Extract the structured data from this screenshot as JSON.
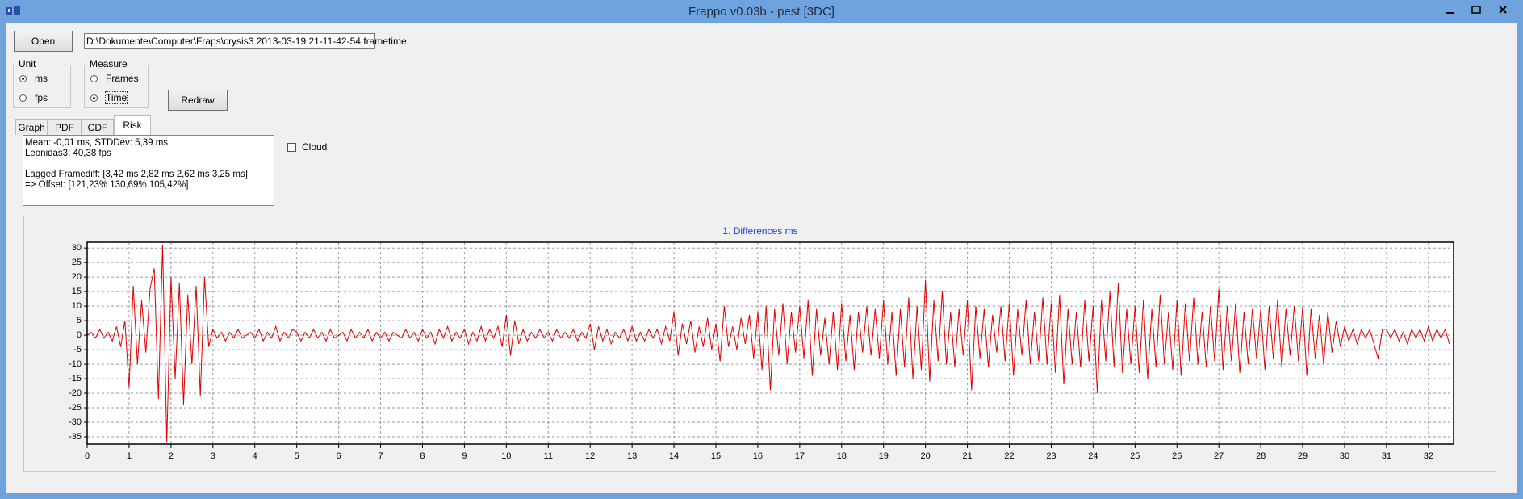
{
  "window": {
    "title": "Frappo v0.03b - pest [3DC]"
  },
  "toolbar": {
    "open_button": "Open",
    "file_path": "D:\\Dokumente\\Computer\\Fraps\\crysis3 2013-03-19 21-11-42-54 frametime",
    "redraw_button": "Redraw"
  },
  "unit": {
    "label": "Unit",
    "options": [
      "ms",
      "fps"
    ],
    "selected": "ms"
  },
  "measure": {
    "label": "Measure",
    "options": [
      "Frames",
      "Time"
    ],
    "selected": "Time"
  },
  "tabs": {
    "items": [
      "Graph",
      "PDF",
      "CDF",
      "Risk"
    ],
    "active": "Risk"
  },
  "stats": [
    [
      "Mean: -0,01 ms, STDDev: 5,39 ms",
      "Leonidas3: 40,38 fps"
    ],
    [
      "Lagged Framediff: [3,42 ms 2,82 ms 2,62 ms 3,25 ms]",
      "=> Offset: [121,23% 130,69% 105,42%]"
    ]
  ],
  "cloud": {
    "label": "Cloud",
    "checked": false
  },
  "chart_data": {
    "type": "line",
    "title": "1. Differences ms",
    "color": "#e00000",
    "grid": true,
    "xlim": [
      0,
      32.6
    ],
    "ylim": [
      -37.5,
      32
    ],
    "xticks": [
      0,
      1,
      2,
      3,
      4,
      5,
      6,
      7,
      8,
      9,
      10,
      11,
      12,
      13,
      14,
      15,
      16,
      17,
      18,
      19,
      20,
      21,
      22,
      23,
      24,
      25,
      26,
      27,
      28,
      29,
      30,
      31,
      32
    ],
    "yticks": [
      30,
      25,
      20,
      15,
      10,
      5,
      0,
      -5,
      -10,
      -15,
      -20,
      -25,
      -30,
      -35
    ],
    "x": [
      0,
      0.1,
      0.2,
      0.3,
      0.4,
      0.5,
      0.6,
      0.7,
      0.8,
      0.9,
      1,
      1.1,
      1.2,
      1.3,
      1.4,
      1.5,
      1.6,
      1.7,
      1.8,
      1.9,
      2,
      2.1,
      2.2,
      2.3,
      2.4,
      2.5,
      2.6,
      2.7,
      2.8,
      2.9,
      3,
      3.1,
      3.2,
      3.3,
      3.4,
      3.5,
      3.6,
      3.7,
      3.8,
      3.9,
      4,
      4.1,
      4.2,
      4.3,
      4.4,
      4.5,
      4.6,
      4.7,
      4.8,
      4.9,
      5,
      5.1,
      5.2,
      5.3,
      5.4,
      5.5,
      5.6,
      5.7,
      5.8,
      5.9,
      6,
      6.1,
      6.2,
      6.3,
      6.4,
      6.5,
      6.6,
      6.7,
      6.8,
      6.9,
      7,
      7.1,
      7.2,
      7.3,
      7.4,
      7.5,
      7.6,
      7.7,
      7.8,
      7.9,
      8,
      8.1,
      8.2,
      8.3,
      8.4,
      8.5,
      8.6,
      8.7,
      8.8,
      8.9,
      9,
      9.1,
      9.2,
      9.3,
      9.4,
      9.5,
      9.6,
      9.7,
      9.8,
      9.9,
      10,
      10.1,
      10.2,
      10.3,
      10.4,
      10.5,
      10.6,
      10.7,
      10.8,
      10.9,
      11,
      11.1,
      11.2,
      11.3,
      11.4,
      11.5,
      11.6,
      11.7,
      11.8,
      11.9,
      12,
      12.1,
      12.2,
      12.3,
      12.4,
      12.5,
      12.6,
      12.7,
      12.8,
      12.9,
      13,
      13.1,
      13.2,
      13.3,
      13.4,
      13.5,
      13.6,
      13.7,
      13.8,
      13.9,
      14,
      14.1,
      14.2,
      14.3,
      14.4,
      14.5,
      14.6,
      14.7,
      14.8,
      14.9,
      15,
      15.1,
      15.2,
      15.3,
      15.4,
      15.5,
      15.6,
      15.7,
      15.8,
      15.9,
      16,
      16.1,
      16.2,
      16.3,
      16.4,
      16.5,
      16.6,
      16.7,
      16.8,
      16.9,
      17,
      17.1,
      17.2,
      17.3,
      17.4,
      17.5,
      17.6,
      17.7,
      17.8,
      17.9,
      18,
      18.1,
      18.2,
      18.3,
      18.4,
      18.5,
      18.6,
      18.7,
      18.8,
      18.9,
      19,
      19.1,
      19.2,
      19.3,
      19.4,
      19.5,
      19.6,
      19.7,
      19.8,
      19.9,
      20,
      20.1,
      20.2,
      20.3,
      20.4,
      20.5,
      20.6,
      20.7,
      20.8,
      20.9,
      21,
      21.1,
      21.2,
      21.3,
      21.4,
      21.5,
      21.6,
      21.7,
      21.8,
      21.9,
      22,
      22.1,
      22.2,
      22.3,
      22.4,
      22.5,
      22.6,
      22.7,
      22.8,
      22.9,
      23,
      23.1,
      23.2,
      23.3,
      23.4,
      23.5,
      23.6,
      23.7,
      23.8,
      23.9,
      24,
      24.1,
      24.2,
      24.3,
      24.4,
      24.5,
      24.6,
      24.7,
      24.8,
      24.9,
      25,
      25.1,
      25.2,
      25.3,
      25.4,
      25.5,
      25.6,
      25.7,
      25.8,
      25.9,
      26,
      26.1,
      26.2,
      26.3,
      26.4,
      26.5,
      26.6,
      26.7,
      26.8,
      26.9,
      27,
      27.1,
      27.2,
      27.3,
      27.4,
      27.5,
      27.6,
      27.7,
      27.8,
      27.9,
      28,
      28.1,
      28.2,
      28.3,
      28.4,
      28.5,
      28.6,
      28.7,
      28.8,
      28.9,
      29,
      29.1,
      29.2,
      29.3,
      29.4,
      29.5,
      29.6,
      29.7,
      29.8,
      29.9,
      30,
      30.1,
      30.2,
      30.3,
      30.4,
      30.5,
      30.6,
      30.7,
      30.8,
      30.9,
      31,
      31.1,
      31.2,
      31.3,
      31.4,
      31.5,
      31.6,
      31.7,
      31.8,
      31.9,
      32,
      32.1,
      32.2,
      32.3,
      32.4,
      32.5
    ],
    "values": [
      0,
      1,
      -1,
      2,
      -1,
      1,
      -2,
      3,
      -4,
      5,
      -18,
      17,
      -10,
      12,
      -6,
      16,
      23,
      -22,
      31,
      -37,
      20,
      -15,
      18,
      -24,
      14,
      -10,
      17,
      -21,
      20,
      -4,
      2,
      -1,
      1,
      -2,
      1,
      -1,
      2,
      -1,
      0,
      1,
      -1,
      2,
      -2,
      1,
      -1,
      3,
      -2,
      1,
      -1,
      2,
      1,
      -2,
      1,
      -1,
      2,
      -1,
      1,
      -2,
      2,
      -1,
      0,
      1,
      -2,
      2,
      -1,
      1,
      -1,
      2,
      -2,
      1,
      -1,
      1,
      -2,
      1,
      0,
      -1,
      2,
      -1,
      1,
      -2,
      2,
      -1,
      1,
      -3,
      2,
      -1,
      3,
      -2,
      1,
      -1,
      2,
      -3,
      1,
      -2,
      3,
      -2,
      2,
      -1,
      3,
      -4,
      7,
      -7,
      5,
      -3,
      2,
      -2,
      1,
      -1,
      2,
      -1,
      1,
      -2,
      2,
      -1,
      1,
      -1,
      2,
      -2,
      1,
      -1,
      4,
      -5,
      3,
      -2,
      2,
      -3,
      1,
      -1,
      2,
      -2,
      3,
      -2,
      1,
      -2,
      2,
      -1,
      2,
      -3,
      3,
      -2,
      8,
      -7,
      4,
      -3,
      5,
      -6,
      3,
      -4,
      6,
      -5,
      4,
      -9,
      10,
      -4,
      3,
      -5,
      6,
      -3,
      7,
      -8,
      8,
      -12,
      10,
      -19,
      9,
      -7,
      11,
      -10,
      8,
      -6,
      10,
      -8,
      12,
      -14,
      9,
      -7,
      6,
      -10,
      8,
      -12,
      11,
      -9,
      7,
      -12,
      8,
      -6,
      10,
      -7,
      9,
      -8,
      12,
      -10,
      8,
      -14,
      9,
      -11,
      13,
      -15,
      10,
      -12,
      19,
      -16,
      12,
      -9,
      15,
      -10,
      8,
      -11,
      9,
      -7,
      12,
      -19,
      10,
      -8,
      9,
      -11,
      7,
      -6,
      10,
      -9,
      11,
      -14,
      9,
      -7,
      12,
      -10,
      8,
      -9,
      13,
      -10,
      11,
      -13,
      14,
      -17,
      9,
      -10,
      8,
      -11,
      12,
      -9,
      10,
      -20,
      12,
      -9,
      15,
      -11,
      18,
      -13,
      9,
      -10,
      10,
      -13,
      12,
      -15,
      9,
      -11,
      14,
      -10,
      8,
      -12,
      12,
      -14,
      11,
      -9,
      13,
      -10,
      8,
      -11,
      10,
      -9,
      16,
      -12,
      10,
      -9,
      11,
      -13,
      8,
      -10,
      9,
      -8,
      9,
      -12,
      10,
      -8,
      12,
      -11,
      9,
      -7,
      10,
      -9,
      10,
      -14,
      9,
      -8,
      7,
      -10,
      8,
      -6,
      5,
      -4,
      3,
      -2,
      2,
      -3,
      2,
      -1,
      2,
      -3,
      -8,
      2,
      2,
      -1,
      2,
      -2,
      1,
      -3,
      2,
      -1,
      2,
      -2,
      3,
      -2,
      2,
      -1,
      2,
      -3
    ]
  }
}
